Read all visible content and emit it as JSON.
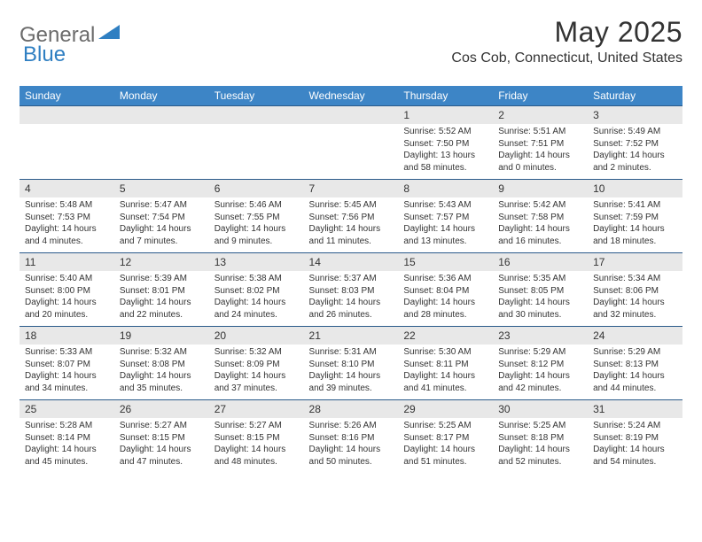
{
  "logo": {
    "word1": "General",
    "word2": "Blue"
  },
  "header": {
    "month_title": "May 2025",
    "location": "Cos Cob, Connecticut, United States"
  },
  "colors": {
    "header_bg": "#3d85c6",
    "header_text": "#ffffff",
    "daynum_bg": "#e8e8e8",
    "border": "#2a5a8a",
    "logo_gray": "#6b6b6b",
    "logo_blue": "#2f7fc2",
    "text": "#333333"
  },
  "day_names": [
    "Sunday",
    "Monday",
    "Tuesday",
    "Wednesday",
    "Thursday",
    "Friday",
    "Saturday"
  ],
  "weeks": [
    {
      "nums": [
        "",
        "",
        "",
        "",
        "1",
        "2",
        "3"
      ],
      "cells": [
        "",
        "",
        "",
        "",
        "Sunrise: 5:52 AM\nSunset: 7:50 PM\nDaylight: 13 hours and 58 minutes.",
        "Sunrise: 5:51 AM\nSunset: 7:51 PM\nDaylight: 14 hours and 0 minutes.",
        "Sunrise: 5:49 AM\nSunset: 7:52 PM\nDaylight: 14 hours and 2 minutes."
      ]
    },
    {
      "nums": [
        "4",
        "5",
        "6",
        "7",
        "8",
        "9",
        "10"
      ],
      "cells": [
        "Sunrise: 5:48 AM\nSunset: 7:53 PM\nDaylight: 14 hours and 4 minutes.",
        "Sunrise: 5:47 AM\nSunset: 7:54 PM\nDaylight: 14 hours and 7 minutes.",
        "Sunrise: 5:46 AM\nSunset: 7:55 PM\nDaylight: 14 hours and 9 minutes.",
        "Sunrise: 5:45 AM\nSunset: 7:56 PM\nDaylight: 14 hours and 11 minutes.",
        "Sunrise: 5:43 AM\nSunset: 7:57 PM\nDaylight: 14 hours and 13 minutes.",
        "Sunrise: 5:42 AM\nSunset: 7:58 PM\nDaylight: 14 hours and 16 minutes.",
        "Sunrise: 5:41 AM\nSunset: 7:59 PM\nDaylight: 14 hours and 18 minutes."
      ]
    },
    {
      "nums": [
        "11",
        "12",
        "13",
        "14",
        "15",
        "16",
        "17"
      ],
      "cells": [
        "Sunrise: 5:40 AM\nSunset: 8:00 PM\nDaylight: 14 hours and 20 minutes.",
        "Sunrise: 5:39 AM\nSunset: 8:01 PM\nDaylight: 14 hours and 22 minutes.",
        "Sunrise: 5:38 AM\nSunset: 8:02 PM\nDaylight: 14 hours and 24 minutes.",
        "Sunrise: 5:37 AM\nSunset: 8:03 PM\nDaylight: 14 hours and 26 minutes.",
        "Sunrise: 5:36 AM\nSunset: 8:04 PM\nDaylight: 14 hours and 28 minutes.",
        "Sunrise: 5:35 AM\nSunset: 8:05 PM\nDaylight: 14 hours and 30 minutes.",
        "Sunrise: 5:34 AM\nSunset: 8:06 PM\nDaylight: 14 hours and 32 minutes."
      ]
    },
    {
      "nums": [
        "18",
        "19",
        "20",
        "21",
        "22",
        "23",
        "24"
      ],
      "cells": [
        "Sunrise: 5:33 AM\nSunset: 8:07 PM\nDaylight: 14 hours and 34 minutes.",
        "Sunrise: 5:32 AM\nSunset: 8:08 PM\nDaylight: 14 hours and 35 minutes.",
        "Sunrise: 5:32 AM\nSunset: 8:09 PM\nDaylight: 14 hours and 37 minutes.",
        "Sunrise: 5:31 AM\nSunset: 8:10 PM\nDaylight: 14 hours and 39 minutes.",
        "Sunrise: 5:30 AM\nSunset: 8:11 PM\nDaylight: 14 hours and 41 minutes.",
        "Sunrise: 5:29 AM\nSunset: 8:12 PM\nDaylight: 14 hours and 42 minutes.",
        "Sunrise: 5:29 AM\nSunset: 8:13 PM\nDaylight: 14 hours and 44 minutes."
      ]
    },
    {
      "nums": [
        "25",
        "26",
        "27",
        "28",
        "29",
        "30",
        "31"
      ],
      "cells": [
        "Sunrise: 5:28 AM\nSunset: 8:14 PM\nDaylight: 14 hours and 45 minutes.",
        "Sunrise: 5:27 AM\nSunset: 8:15 PM\nDaylight: 14 hours and 47 minutes.",
        "Sunrise: 5:27 AM\nSunset: 8:15 PM\nDaylight: 14 hours and 48 minutes.",
        "Sunrise: 5:26 AM\nSunset: 8:16 PM\nDaylight: 14 hours and 50 minutes.",
        "Sunrise: 5:25 AM\nSunset: 8:17 PM\nDaylight: 14 hours and 51 minutes.",
        "Sunrise: 5:25 AM\nSunset: 8:18 PM\nDaylight: 14 hours and 52 minutes.",
        "Sunrise: 5:24 AM\nSunset: 8:19 PM\nDaylight: 14 hours and 54 minutes."
      ]
    }
  ]
}
